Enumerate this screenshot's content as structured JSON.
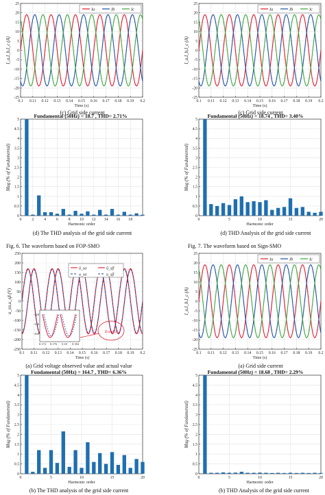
{
  "colors": {
    "a": "#e0182d",
    "b": "#1a4fa5",
    "c": "#3aa33a",
    "bar": "#1f6fb0",
    "obs": "#e0182d",
    "act": "#1a3f9e"
  },
  "legend_phase": [
    "I_a",
    "I_b",
    "I_c"
  ],
  "panels": {
    "c_left": {
      "ylabel": "I_a,I_b,I_c (A)",
      "xlabel": "Time (s)",
      "caption": "(c)    Grid side current"
    },
    "c_right": {
      "ylabel": "I_a,I_b,I_c (A)",
      "xlabel": "Time (s)",
      "caption": "(c)    Grid side current"
    },
    "d_left": {
      "title": "Fundamental (50Hz) = 18.7 , THD= 2.71%",
      "ylabel": "Mag (% of Fundamental)",
      "xlabel": "Harmonic order",
      "caption": "(d)    The THD analysis of the grid side current"
    },
    "d_right": {
      "title": "Fundamental (50Hz) = 18.74 , THD= 3.40%",
      "ylabel": "Mag (% of Fundamental)",
      "xlabel": "Harmonic order",
      "caption": "(d)    THD Analysis of the grid side current"
    },
    "a_left": {
      "ylabel": "u_sα,u_sβ (V)",
      "xlabel": "Time (s)",
      "caption": "(a)    Grid voltage observed value and actual value",
      "legend": [
        "û_sα",
        "û_sβ",
        "u_sα",
        "u_sβ"
      ],
      "zoom_label": "Zoom in",
      "inset_ticks_y": [
        "-120",
        "-140",
        "-160"
      ],
      "inset_ticks_x": [
        "0.172",
        "0.176",
        "0.18",
        "0.184"
      ]
    },
    "a_right": {
      "ylabel": "I_a,I_b,I_c (A)",
      "xlabel": "Time (s)",
      "caption": "(a)    Grid side current"
    },
    "b_left": {
      "title": "Fundamental (50Hz) = 164.7 , THD= 6.36%",
      "ylabel": "Mag (% of Fundamental)",
      "xlabel": "Harmonic order",
      "caption": "(b)    The THD analysis of the grid side current"
    },
    "b_right": {
      "title": "Fundamental (50Hz) = 18.68 , THD= 2.29%",
      "ylabel": "Mag (% of Fundamental)",
      "xlabel": "Harmonic order",
      "caption": "(b)    THD Analysis of the grid side current"
    }
  },
  "figure_captions": {
    "fig6": "Fig. 6. The waveform based on FOP-SMO",
    "fig7": "Fig. 7. The waveform based on Sign-SMO"
  },
  "chart_data": [
    {
      "id": "c_left",
      "type": "line",
      "xlabel": "Time (s)",
      "ylabel": "I_a,I_b,I_c (A)",
      "xlim": [
        0.1,
        0.2
      ],
      "ylim": [
        -25,
        25
      ],
      "xticks": [
        0.1,
        0.11,
        0.12,
        0.13,
        0.14,
        0.15,
        0.16,
        0.17,
        0.18,
        0.19,
        0.2
      ],
      "yticks": [
        -25,
        -20,
        -15,
        -10,
        -5,
        0,
        5,
        10,
        15,
        20,
        25
      ],
      "series": [
        {
          "name": "I_a",
          "amplitude": 19,
          "frequency_hz": 50,
          "phase_deg": 0
        },
        {
          "name": "I_b",
          "amplitude": 19,
          "frequency_hz": 50,
          "phase_deg": -120
        },
        {
          "name": "I_c",
          "amplitude": 19,
          "frequency_hz": 50,
          "phase_deg": 120
        }
      ]
    },
    {
      "id": "c_right",
      "type": "line",
      "xlabel": "Time (s)",
      "ylabel": "I_a,I_b,I_c (A)",
      "xlim": [
        0.1,
        0.2
      ],
      "ylim": [
        -25,
        25
      ],
      "xticks": [
        0.1,
        0.11,
        0.12,
        0.13,
        0.14,
        0.15,
        0.16,
        0.17,
        0.18,
        0.19,
        0.2
      ],
      "yticks": [
        -25,
        -20,
        -15,
        -10,
        -5,
        0,
        5,
        10,
        15,
        20,
        25
      ],
      "series": [
        {
          "name": "I_a",
          "amplitude": 19,
          "frequency_hz": 50,
          "phase_deg": 0
        },
        {
          "name": "I_b",
          "amplitude": 19,
          "frequency_hz": 50,
          "phase_deg": -120
        },
        {
          "name": "I_c",
          "amplitude": 19,
          "frequency_hz": 50,
          "phase_deg": 120
        }
      ]
    },
    {
      "id": "d_left",
      "type": "bar",
      "title": "Fundamental (50Hz) = 18.7 , THD= 2.71%",
      "xlabel": "Harmonic order",
      "ylabel": "Mag (% of Fundamental)",
      "xlim": [
        0,
        20
      ],
      "ylim": [
        0,
        5
      ],
      "xticks": [
        0,
        2,
        4,
        6,
        8,
        10,
        12,
        14,
        16,
        18
      ],
      "yticks": [
        0,
        0.5,
        1,
        1.5,
        2,
        2.5,
        3,
        3.5,
        4,
        4.5,
        5
      ],
      "harmonics": [
        1,
        2,
        3,
        4,
        5,
        6,
        7,
        8,
        9,
        10,
        11,
        12,
        13,
        14,
        15,
        16,
        17,
        18,
        19,
        20
      ],
      "values": [
        5,
        0.05,
        1.05,
        0.18,
        0.18,
        0.1,
        0.35,
        0.05,
        0.25,
        0.1,
        0.22,
        0.05,
        0.3,
        0.05,
        0.35,
        0.05,
        0.2,
        0.05,
        0.12,
        0.05
      ]
    },
    {
      "id": "d_right",
      "type": "bar",
      "title": "Fundamental (50Hz) = 18.74 , THD= 3.40%",
      "xlabel": "Harmonic order",
      "ylabel": "Mag (% of Fundamental)",
      "xlim": [
        0,
        20
      ],
      "ylim": [
        0,
        5
      ],
      "xticks": [
        0,
        5,
        10,
        15,
        20
      ],
      "yticks": [
        0,
        0.5,
        1,
        1.5,
        2,
        2.5,
        3,
        3.5,
        4,
        4.5,
        5
      ],
      "harmonics": [
        1,
        2,
        3,
        4,
        5,
        6,
        7,
        8,
        9,
        10,
        11,
        12,
        13,
        14,
        15,
        16,
        17,
        18,
        19,
        20
      ],
      "values": [
        5,
        0.6,
        0.5,
        0.65,
        0.55,
        0.85,
        1.0,
        0.7,
        0.75,
        0.7,
        0.8,
        0.3,
        0.4,
        0.45,
        0.9,
        0.4,
        0.45,
        0.2,
        0.15,
        0.2
      ]
    },
    {
      "id": "a_left",
      "type": "line",
      "xlabel": "Time (s)",
      "ylabel": "u_sα,u_sβ (V)",
      "xlim": [
        0.1,
        0.2
      ],
      "ylim": [
        -250,
        250
      ],
      "xticks": [
        0.1,
        0.11,
        0.12,
        0.13,
        0.14,
        0.15,
        0.16,
        0.17,
        0.18,
        0.19,
        0.2
      ],
      "yticks": [
        -250,
        -200,
        -150,
        -100,
        -50,
        0,
        50,
        100,
        150,
        200,
        250
      ],
      "series": [
        {
          "name": "û_sα",
          "amplitude": 170,
          "frequency_hz": 50,
          "phase_deg": 0
        },
        {
          "name": "û_sβ",
          "amplitude": 170,
          "frequency_hz": 50,
          "phase_deg": -90
        },
        {
          "name": "u_sα",
          "amplitude": 165,
          "frequency_hz": 50,
          "phase_deg": 0
        },
        {
          "name": "u_sβ",
          "amplitude": 165,
          "frequency_hz": 50,
          "phase_deg": -90
        }
      ]
    },
    {
      "id": "a_right",
      "type": "line",
      "xlabel": "Time (s)",
      "ylabel": "I_a,I_b,I_c (A)",
      "xlim": [
        0.1,
        0.2
      ],
      "ylim": [
        -25,
        25
      ],
      "xticks": [
        0.1,
        0.11,
        0.12,
        0.13,
        0.14,
        0.15,
        0.16,
        0.17,
        0.18,
        0.19,
        0.2
      ],
      "yticks": [
        -25,
        -20,
        -15,
        -10,
        -5,
        0,
        5,
        10,
        15,
        20,
        25
      ],
      "series": [
        {
          "name": "I_a",
          "amplitude": 19,
          "frequency_hz": 50,
          "phase_deg": 0
        },
        {
          "name": "I_b",
          "amplitude": 19,
          "frequency_hz": 50,
          "phase_deg": -120
        },
        {
          "name": "I_c",
          "amplitude": 19,
          "frequency_hz": 50,
          "phase_deg": 120
        }
      ]
    },
    {
      "id": "b_left",
      "type": "bar",
      "title": "Fundamental (50Hz) = 164.7 , THD= 6.36%",
      "xlabel": "Harmonic order",
      "ylabel": "Mag (% of Fundamental)",
      "xlim": [
        0,
        20
      ],
      "ylim": [
        0,
        5
      ],
      "xticks": [
        0,
        5,
        10,
        15,
        20
      ],
      "yticks": [
        0,
        0.5,
        1,
        1.5,
        2,
        2.5,
        3,
        3.5,
        4,
        4.5,
        5
      ],
      "harmonics": [
        1,
        2,
        3,
        4,
        5,
        6,
        7,
        8,
        9,
        10,
        11,
        12,
        13,
        14,
        15,
        16,
        17,
        18,
        19,
        20
      ],
      "values": [
        5,
        0.1,
        1.2,
        0.3,
        1.2,
        0.55,
        2.15,
        0.35,
        1.2,
        0.3,
        1.6,
        0.6,
        1.05,
        0.5,
        1.1,
        0.45,
        0.95,
        0.3,
        0.75,
        0.6
      ]
    },
    {
      "id": "b_right",
      "type": "bar",
      "title": "Fundamental (50Hz) = 18.68 , THD= 2.29%",
      "xlabel": "Harmonic order",
      "ylabel": "Mag (% of Fundamental)",
      "xlim": [
        0,
        20
      ],
      "ylim": [
        0,
        5
      ],
      "xticks": [
        0,
        5,
        10,
        15,
        20
      ],
      "yticks": [
        0,
        0.5,
        1,
        1.5,
        2,
        2.5,
        3,
        3.5,
        4,
        4.5,
        5
      ],
      "harmonics": [
        1,
        2,
        3,
        4,
        5,
        6,
        7,
        8,
        9,
        10,
        11,
        12,
        13,
        14,
        15,
        16,
        17,
        18,
        19,
        20
      ],
      "values": [
        5,
        0.05,
        0.05,
        0.07,
        0.05,
        0.06,
        0.1,
        0.05,
        0.05,
        0.06,
        0.05,
        0.04,
        0.05,
        0.04,
        0.05,
        0.04,
        0.05,
        0.04,
        0.05,
        0.04
      ]
    }
  ]
}
